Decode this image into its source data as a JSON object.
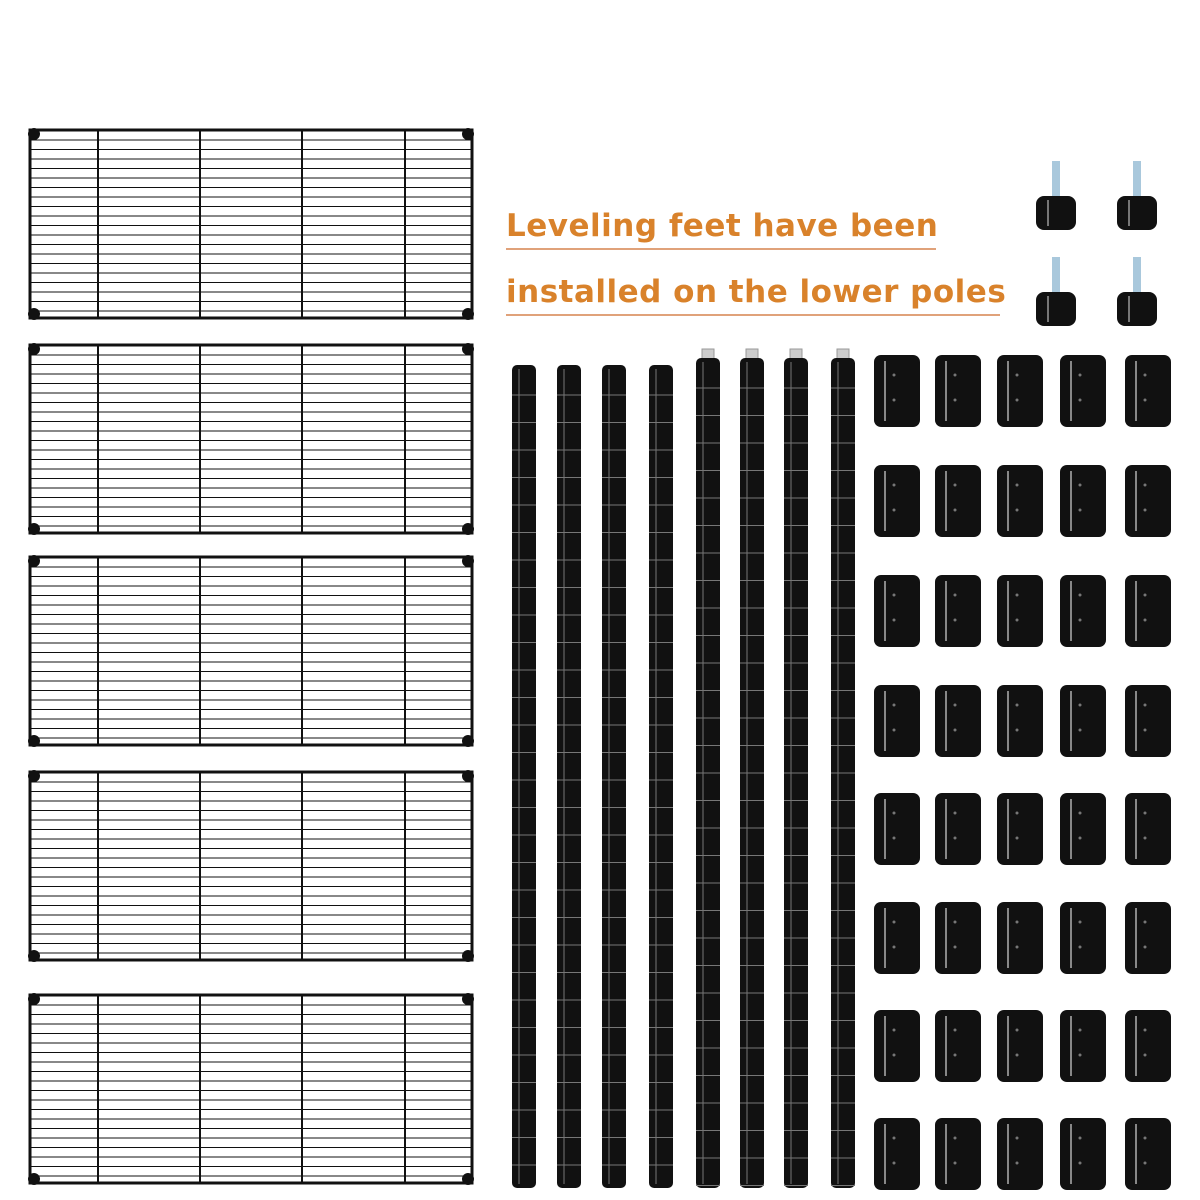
{
  "caption": {
    "line1": "Leveling feet have been",
    "line2": "installed on the lower poles"
  },
  "colors": {
    "caption_text": "#d9822b",
    "caption_underline": "#e0a27a",
    "metal": "#111111",
    "thread": "#a9c8dc",
    "background": "#ffffff"
  },
  "parts": {
    "shelf_icon": "wire-shelf",
    "pole_icon": "shelf-pole",
    "clip_icon": "sleeve-clip",
    "foot_icon": "leveling-foot"
  }
}
